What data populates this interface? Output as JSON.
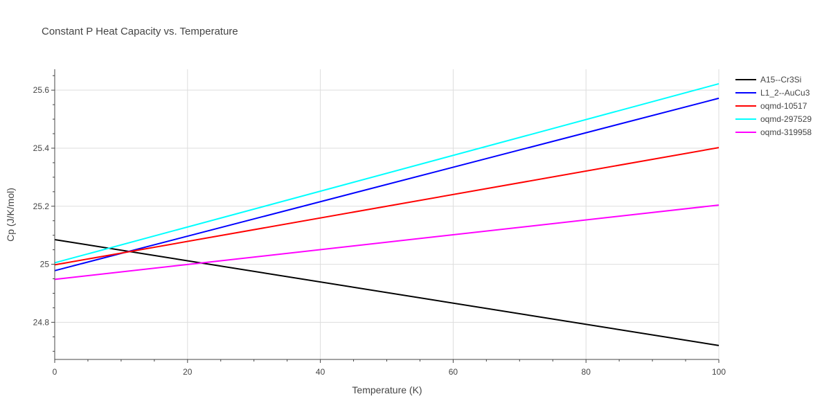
{
  "chart_data": {
    "type": "line",
    "title": "Constant P Heat Capacity vs. Temperature",
    "xlabel": "Temperature (K)",
    "ylabel": "Cp (J/K/mol)",
    "xlim": [
      0,
      100
    ],
    "ylim": [
      24.672,
      25.672
    ],
    "x_ticks": [
      0,
      20,
      40,
      60,
      80,
      100
    ],
    "x_tick_labels": [
      "0",
      "20",
      "40",
      "60",
      "80",
      "100"
    ],
    "y_ticks": [
      24.8,
      25.0,
      25.2,
      25.4,
      25.6
    ],
    "y_tick_labels": [
      "24.8",
      "25",
      "25.2",
      "25.4",
      "25.6"
    ],
    "grid": true,
    "legend_position": "top-right",
    "series": [
      {
        "name": "A15--Cr3Si",
        "color": "#000000",
        "x": [
          0,
          100
        ],
        "y": [
          25.085,
          24.72
        ]
      },
      {
        "name": "L1_2--AuCu3",
        "color": "#0000ff",
        "x": [
          0,
          100
        ],
        "y": [
          24.978,
          25.572
        ]
      },
      {
        "name": "oqmd-10517",
        "color": "#ff0000",
        "x": [
          0,
          100
        ],
        "y": [
          24.998,
          25.402
        ]
      },
      {
        "name": "oqmd-297529",
        "color": "#00ffff",
        "x": [
          0,
          100
        ],
        "y": [
          25.005,
          25.622
        ]
      },
      {
        "name": "oqmd-319958",
        "color": "#ff00ff",
        "x": [
          0,
          100
        ],
        "y": [
          24.948,
          25.204
        ]
      }
    ]
  }
}
